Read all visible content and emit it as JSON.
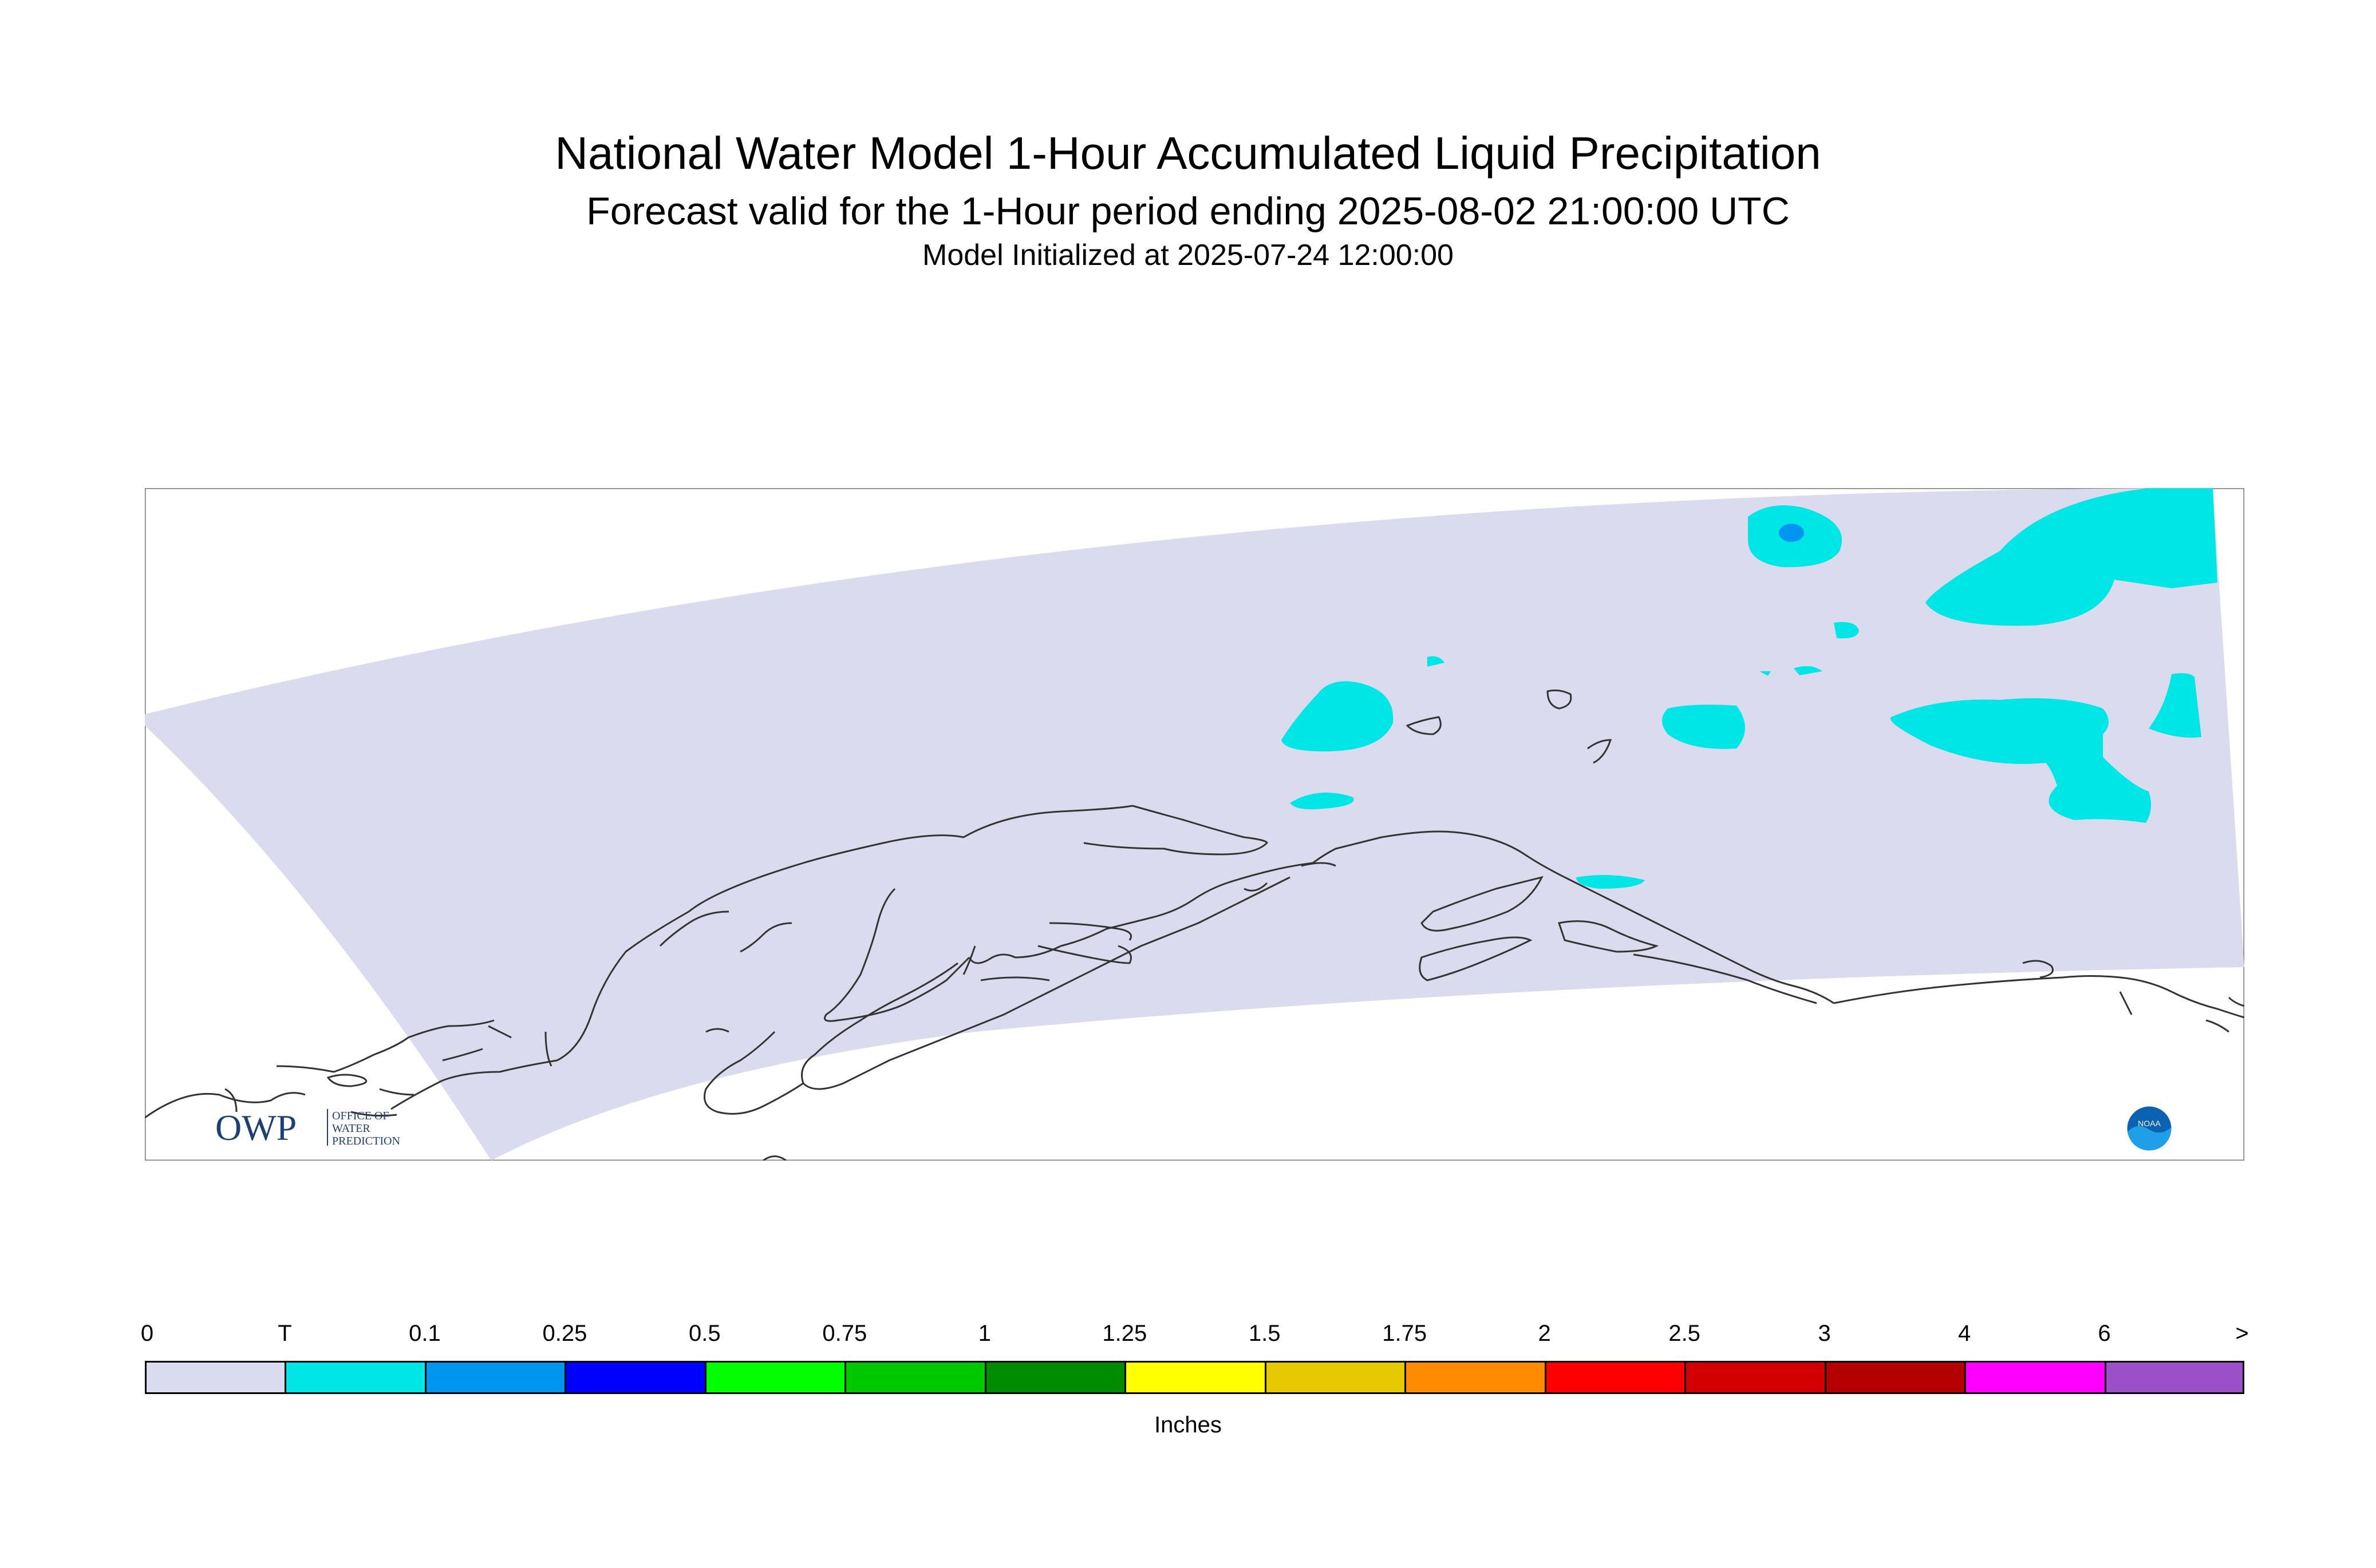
{
  "header": {
    "title": "National Water Model 1-Hour Accumulated Liquid Precipitation",
    "subtitle": "Forecast valid for the 1-Hour period ending 2025-08-02 21:00:00 UTC",
    "init": "Model Initialized at 2025-07-24 12:00:00"
  },
  "map": {
    "domain_fill": "#dadbee",
    "precip_trace_color": "#00e6e6",
    "precip_light_color": "#0096f0",
    "coastline_color": "#333333"
  },
  "legend": {
    "units": "Inches",
    "ticks": [
      "0",
      "T",
      "0.1",
      "0.25",
      "0.5",
      "0.75",
      "1",
      "1.25",
      "1.5",
      "1.75",
      "2",
      "2.5",
      "3",
      "4",
      "6",
      ">"
    ],
    "colors": [
      "#dadbee",
      "#00e6e6",
      "#0096f0",
      "#0000ff",
      "#00ff00",
      "#00c800",
      "#008c00",
      "#ffff00",
      "#e6c800",
      "#ff8c00",
      "#ff0000",
      "#d20000",
      "#b40000",
      "#ff00ff",
      "#9b50c8"
    ]
  },
  "logos": {
    "owp": {
      "mark": "OWP",
      "line1": "OFFICE OF",
      "line2": "WATER",
      "line3": "PREDICTION"
    },
    "noaa": {
      "mark": "NOAA"
    }
  }
}
